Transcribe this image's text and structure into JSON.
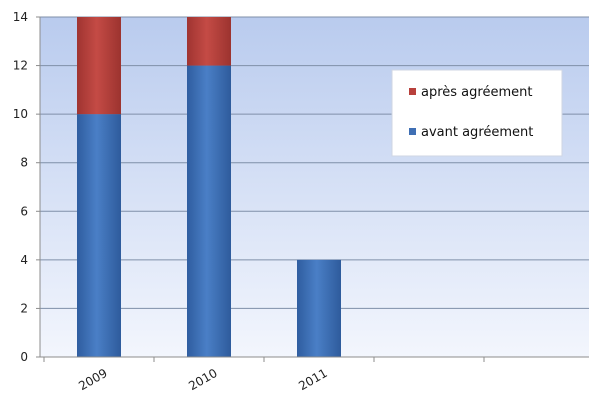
{
  "chart_data": {
    "type": "bar",
    "stacked": true,
    "categories": [
      "2009",
      "2010",
      "2011"
    ],
    "series": [
      {
        "name": "avant agréement",
        "values": [
          10,
          12,
          4
        ],
        "color": "#3f6fb4"
      },
      {
        "name": "après agréement",
        "values": [
          4,
          2,
          0
        ],
        "color": "#b8403c"
      }
    ],
    "y_ticks": [
      0,
      2,
      4,
      6,
      8,
      10,
      12,
      14
    ],
    "ylim": [
      0,
      14
    ],
    "grid": true,
    "legend_position": "top-right",
    "legend_order": [
      "après agréement",
      "avant agréement"
    ],
    "plot_background": [
      "#b9cbee",
      "#f3f6fd"
    ],
    "axis_color": "#8c8c8c"
  }
}
